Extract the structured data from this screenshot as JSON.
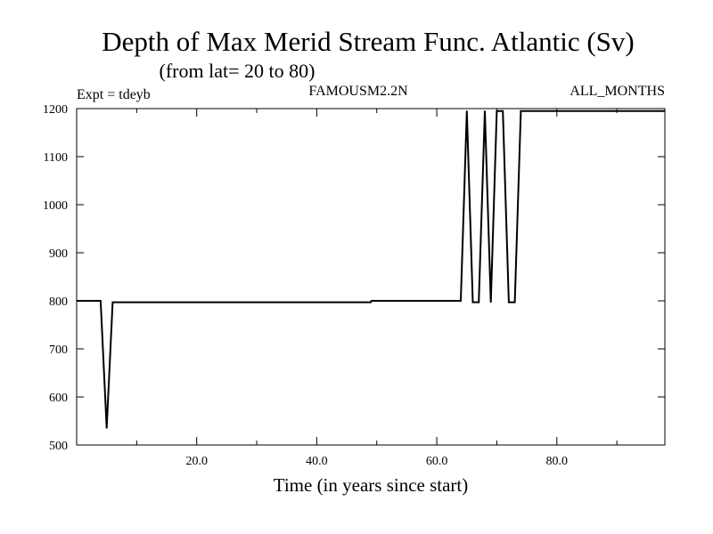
{
  "chart_data": {
    "type": "line",
    "title": "Depth of Max Merid Stream Func. Atlantic (Sv)",
    "subtitle": "(from lat= 20 to 80)",
    "annotations": {
      "left": "Expt = tdeyb",
      "center": "FAMOUSM2.2N",
      "right": "ALL_MONTHS"
    },
    "xlabel": "Time (in years since start)",
    "ylabel": "",
    "xlim": [
      0,
      98
    ],
    "ylim": [
      500,
      1200
    ],
    "x_ticks_major": [
      20,
      40,
      60,
      80
    ],
    "x_tick_labels": [
      "20.0",
      "40.0",
      "60.0",
      "80.0"
    ],
    "x_ticks_minor": [
      10,
      30,
      50,
      70,
      90
    ],
    "y_ticks": [
      500,
      600,
      700,
      800,
      900,
      1000,
      1100,
      1200
    ],
    "y_tick_labels": [
      "500",
      "600",
      "700",
      "800",
      "900",
      "1000",
      "1100",
      "1200"
    ],
    "grid": false,
    "line_color": "#000000",
    "series": [
      {
        "x": [
          0,
          4,
          5,
          6,
          49,
          49.1,
          64,
          65,
          66,
          67,
          68,
          69,
          70,
          71,
          72,
          73,
          74,
          75,
          76,
          77,
          98
        ],
        "y": [
          800,
          800,
          535,
          797,
          797,
          800,
          800,
          1195,
          797,
          797,
          1195,
          797,
          1195,
          1195,
          797,
          797,
          1195,
          1195,
          1195,
          1195,
          1195
        ]
      }
    ]
  }
}
